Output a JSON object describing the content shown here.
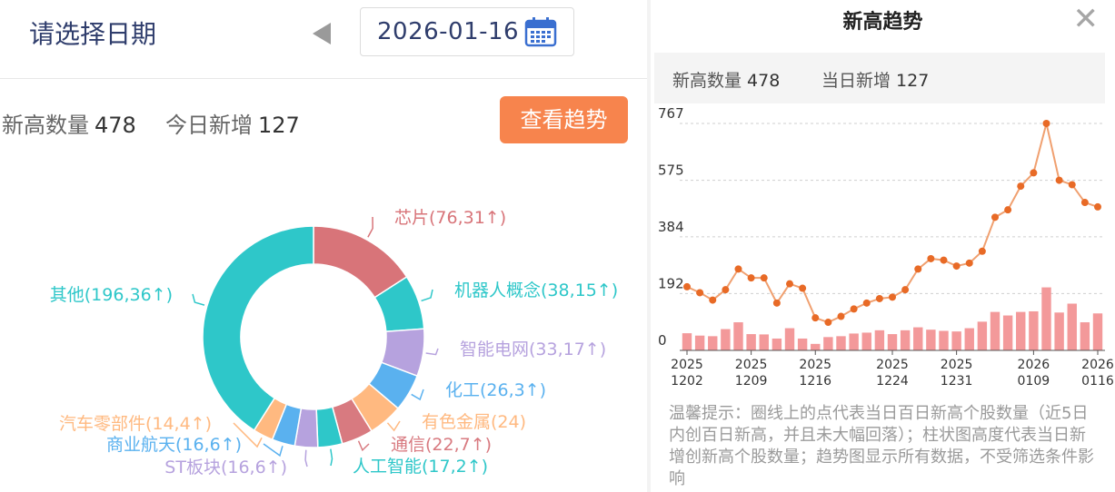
{
  "selector": {
    "title": "请选择日期",
    "date": "2026-01-16"
  },
  "summary": {
    "new_high_label": "新高数量",
    "new_high_value": "478",
    "today_label": "今日新增",
    "today_value": "127",
    "trend_button": "查看趋势"
  },
  "colors": {
    "accent": "#f7844d",
    "title_blue": "#2f3d6c",
    "line": "#e86a26",
    "bar": "#f3999a"
  },
  "chart_data": [
    {
      "type": "pie",
      "donut": true,
      "segments": [
        {
          "label": "芯片(76,31↑)",
          "value": 76,
          "color": "#d87479"
        },
        {
          "label": "机器人概念(38,15↑)",
          "value": 38,
          "color": "#2ec7c9"
        },
        {
          "label": "智能电网(33,17↑)",
          "value": 33,
          "color": "#b6a2de"
        },
        {
          "label": "化工(26,3↑)",
          "value": 26,
          "color": "#5ab1ef"
        },
        {
          "label": "有色金属(24)",
          "value": 24,
          "color": "#ffb980"
        },
        {
          "label": "通信(22,7↑)",
          "value": 22,
          "color": "#d87a80"
        },
        {
          "label": "人工智能(17,2↑)",
          "value": 17,
          "color": "#2ec7c9"
        },
        {
          "label": "ST板块(16,6↑)",
          "value": 16,
          "color": "#b6a2de"
        },
        {
          "label": "商业航天(16,6↑)",
          "value": 16,
          "color": "#5ab1ef"
        },
        {
          "label": "汽车零部件(14,4↑)",
          "value": 14,
          "color": "#ffb980"
        },
        {
          "label": "其他(196,36↑)",
          "value": 196,
          "color": "#2ec7c9"
        }
      ]
    },
    {
      "type": "line",
      "title": "新高趋势",
      "yticks": [
        0,
        192,
        384,
        575,
        767
      ],
      "ylim": [
        0,
        767
      ],
      "xticks": [
        {
          "top": "2025",
          "bottom": "1202",
          "index": 0
        },
        {
          "top": "2025",
          "bottom": "1209",
          "index": 5
        },
        {
          "top": "2025",
          "bottom": "1216",
          "index": 10
        },
        {
          "top": "2025",
          "bottom": "1224",
          "index": 16
        },
        {
          "top": "2025",
          "bottom": "1231",
          "index": 21
        },
        {
          "top": "2026",
          "bottom": "0109",
          "index": 27
        },
        {
          "top": "2026",
          "bottom": "0116",
          "index": 32
        }
      ],
      "series": [
        {
          "type": "line",
          "values": [
            215,
            195,
            170,
            205,
            275,
            245,
            245,
            160,
            225,
            210,
            110,
            95,
            115,
            140,
            160,
            175,
            180,
            205,
            275,
            310,
            305,
            285,
            295,
            335,
            450,
            475,
            555,
            600,
            767,
            575,
            560,
            500,
            485
          ]
        },
        {
          "type": "bar",
          "values": [
            58,
            50,
            48,
            72,
            95,
            55,
            54,
            40,
            75,
            40,
            22,
            45,
            48,
            57,
            60,
            68,
            55,
            68,
            78,
            70,
            66,
            64,
            75,
            97,
            130,
            118,
            130,
            132,
            213,
            128,
            158,
            95,
            125
          ]
        }
      ]
    }
  ],
  "trend_panel": {
    "title": "新高趋势",
    "close_icon": "close-icon",
    "new_high_label": "新高数量",
    "new_high_value": "478",
    "today_label": "当日新增",
    "today_value": "127",
    "tip": "温馨提示：圈线上的点代表当日百日新高个股数量（近5日内创百日新高，并且未大幅回落）；柱状图高度代表当日新增创新高个股数量；趋势图显示所有数据，不受筛选条件影响"
  }
}
